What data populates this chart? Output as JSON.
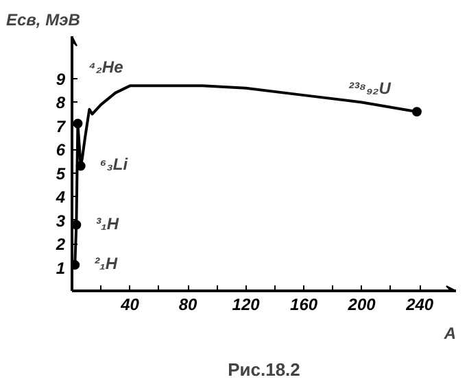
{
  "chart_data": {
    "type": "line",
    "xlabel": "A",
    "ylabel": "Eсв, МэВ",
    "xlim": [
      0,
      265
    ],
    "ylim": [
      0,
      10.8
    ],
    "xticks": [
      {
        "value": 20,
        "label": null
      },
      40,
      {
        "value": 60,
        "label": null
      },
      80,
      {
        "value": 100,
        "label": null
      },
      120,
      {
        "value": 140,
        "label": null
      },
      160,
      {
        "value": 180,
        "label": null
      },
      200,
      {
        "value": 220,
        "label": null
      },
      240
    ],
    "yticks": [
      1,
      2,
      3,
      4,
      5,
      6,
      7,
      8,
      9
    ],
    "grid": false,
    "line_style": "solid",
    "series": [
      {
        "color": "#000000",
        "x": [
          2,
          3,
          4,
          6,
          7,
          9,
          12,
          14,
          20,
          30,
          40,
          60,
          90,
          120,
          160,
          200,
          238
        ],
        "values": [
          1.1,
          2.8,
          7.1,
          5.3,
          5.6,
          6.5,
          7.7,
          7.5,
          7.9,
          8.4,
          8.7,
          8.7,
          8.7,
          8.6,
          8.3,
          8.0,
          7.6
        ]
      },
      {
        "type": "scatter",
        "marker": "circle",
        "color": "#000000",
        "x": [
          2,
          3,
          4,
          6,
          238
        ],
        "values": [
          1.1,
          2.8,
          7.1,
          5.3,
          7.6
        ]
      }
    ],
    "annotations": [
      {
        "text": "²₁H",
        "x": 2,
        "y": 1.1
      },
      {
        "text": "³₁H",
        "x": 3,
        "y": 2.8
      },
      {
        "text": "⁶₃Li",
        "x": 6,
        "y": 5.3
      },
      {
        "text": "⁴₂He",
        "x": 4,
        "y": 7.1
      },
      {
        "text": "²³⁸₉₂U",
        "x": 238,
        "y": 7.6
      },
      "Рис.18.2"
    ]
  }
}
